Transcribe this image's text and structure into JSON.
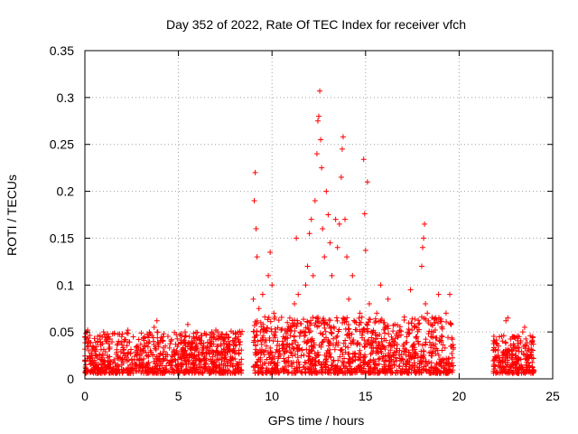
{
  "chart_data": {
    "type": "scatter",
    "title": "Day 352 of 2022, Rate Of TEC Index for receiver vfch",
    "xlabel": "GPS time / hours",
    "ylabel": "ROTI / TECUs",
    "xlim": [
      0,
      25
    ],
    "ylim": [
      0,
      0.35
    ],
    "x_ticks": [
      "0",
      "5",
      "10",
      "15",
      "20",
      "25"
    ],
    "y_ticks": [
      "0",
      "0.05",
      "0.1",
      "0.15",
      "0.2",
      "0.25",
      "0.3",
      "0.35"
    ],
    "grid": true,
    "marker": "plus",
    "color": "#ff0000",
    "series": [
      {
        "points": [
          [
            0.05,
            0.015
          ],
          [
            0.1,
            0.05
          ],
          [
            0.15,
            0.052
          ],
          [
            0.2,
            0.03
          ],
          [
            0.3,
            0.02
          ],
          [
            0.5,
            0.012
          ],
          [
            0.7,
            0.04
          ],
          [
            0.9,
            0.02
          ],
          [
            1.0,
            0.05
          ],
          [
            1.2,
            0.025
          ],
          [
            1.5,
            0.018
          ],
          [
            1.8,
            0.04
          ],
          [
            2.0,
            0.022
          ],
          [
            2.3,
            0.052
          ],
          [
            2.5,
            0.02
          ],
          [
            2.8,
            0.035
          ],
          [
            3.0,
            0.015
          ],
          [
            3.2,
            0.045
          ],
          [
            3.5,
            0.03
          ],
          [
            3.7,
            0.055
          ],
          [
            3.85,
            0.062
          ],
          [
            4.0,
            0.025
          ],
          [
            4.3,
            0.035
          ],
          [
            4.6,
            0.02
          ],
          [
            4.9,
            0.03
          ],
          [
            5.2,
            0.015
          ],
          [
            5.5,
            0.058
          ],
          [
            5.6,
            0.025
          ],
          [
            5.9,
            0.02
          ],
          [
            6.2,
            0.038
          ],
          [
            6.4,
            0.02
          ],
          [
            6.6,
            0.03
          ],
          [
            6.8,
            0.045
          ],
          [
            7.0,
            0.052
          ],
          [
            7.1,
            0.035
          ],
          [
            7.3,
            0.048
          ],
          [
            7.5,
            0.025
          ],
          [
            7.8,
            0.02
          ],
          [
            8.0,
            0.03
          ],
          [
            8.2,
            0.045
          ],
          [
            9.0,
            0.085
          ],
          [
            9.05,
            0.19
          ],
          [
            9.1,
            0.22
          ],
          [
            9.15,
            0.16
          ],
          [
            9.2,
            0.13
          ],
          [
            9.3,
            0.075
          ],
          [
            9.4,
            0.06
          ],
          [
            9.5,
            0.09
          ],
          [
            9.6,
            0.05
          ],
          [
            9.7,
            0.035
          ],
          [
            9.8,
            0.11
          ],
          [
            9.9,
            0.135
          ],
          [
            10.0,
            0.1
          ],
          [
            10.1,
            0.07
          ],
          [
            10.2,
            0.05
          ],
          [
            10.3,
            0.04
          ],
          [
            10.4,
            0.03
          ],
          [
            10.6,
            0.045
          ],
          [
            10.8,
            0.03
          ],
          [
            11.0,
            0.055
          ],
          [
            11.2,
            0.08
          ],
          [
            11.3,
            0.15
          ],
          [
            11.4,
            0.09
          ],
          [
            11.6,
            0.05
          ],
          [
            11.8,
            0.1
          ],
          [
            11.9,
            0.12
          ],
          [
            12.0,
            0.155
          ],
          [
            12.1,
            0.17
          ],
          [
            12.2,
            0.11
          ],
          [
            12.3,
            0.19
          ],
          [
            12.4,
            0.24
          ],
          [
            12.45,
            0.275
          ],
          [
            12.5,
            0.28
          ],
          [
            12.55,
            0.307
          ],
          [
            12.6,
            0.255
          ],
          [
            12.65,
            0.225
          ],
          [
            12.7,
            0.16
          ],
          [
            12.8,
            0.13
          ],
          [
            12.9,
            0.2
          ],
          [
            13.0,
            0.175
          ],
          [
            13.1,
            0.145
          ],
          [
            13.2,
            0.11
          ],
          [
            13.4,
            0.17
          ],
          [
            13.5,
            0.14
          ],
          [
            13.6,
            0.165
          ],
          [
            13.7,
            0.215
          ],
          [
            13.75,
            0.245
          ],
          [
            13.8,
            0.258
          ],
          [
            13.9,
            0.17
          ],
          [
            14.0,
            0.13
          ],
          [
            14.1,
            0.085
          ],
          [
            14.3,
            0.11
          ],
          [
            14.5,
            0.06
          ],
          [
            14.7,
            0.07
          ],
          [
            14.9,
            0.234
          ],
          [
            14.95,
            0.176
          ],
          [
            15.0,
            0.137
          ],
          [
            15.1,
            0.21
          ],
          [
            15.2,
            0.08
          ],
          [
            15.4,
            0.05
          ],
          [
            15.6,
            0.07
          ],
          [
            15.8,
            0.1
          ],
          [
            16.0,
            0.06
          ],
          [
            16.2,
            0.085
          ],
          [
            16.5,
            0.04
          ],
          [
            16.8,
            0.05
          ],
          [
            17.0,
            0.035
          ],
          [
            17.2,
            0.045
          ],
          [
            17.4,
            0.095
          ],
          [
            17.6,
            0.055
          ],
          [
            17.8,
            0.04
          ],
          [
            18.0,
            0.12
          ],
          [
            18.05,
            0.14
          ],
          [
            18.1,
            0.15
          ],
          [
            18.15,
            0.165
          ],
          [
            18.2,
            0.08
          ],
          [
            18.3,
            0.07
          ],
          [
            18.5,
            0.045
          ],
          [
            18.7,
            0.06
          ],
          [
            18.9,
            0.09
          ],
          [
            19.1,
            0.045
          ],
          [
            19.3,
            0.07
          ],
          [
            19.5,
            0.09
          ],
          [
            19.6,
            0.035
          ],
          [
            21.9,
            0.02
          ],
          [
            22.1,
            0.035
          ],
          [
            22.3,
            0.025
          ],
          [
            22.5,
            0.062
          ],
          [
            22.6,
            0.065
          ],
          [
            22.8,
            0.03
          ],
          [
            23.0,
            0.025
          ],
          [
            23.2,
            0.045
          ],
          [
            23.4,
            0.05
          ],
          [
            23.5,
            0.055
          ],
          [
            23.6,
            0.035
          ],
          [
            23.8,
            0.025
          ],
          [
            23.9,
            0.04
          ]
        ]
      }
    ]
  }
}
